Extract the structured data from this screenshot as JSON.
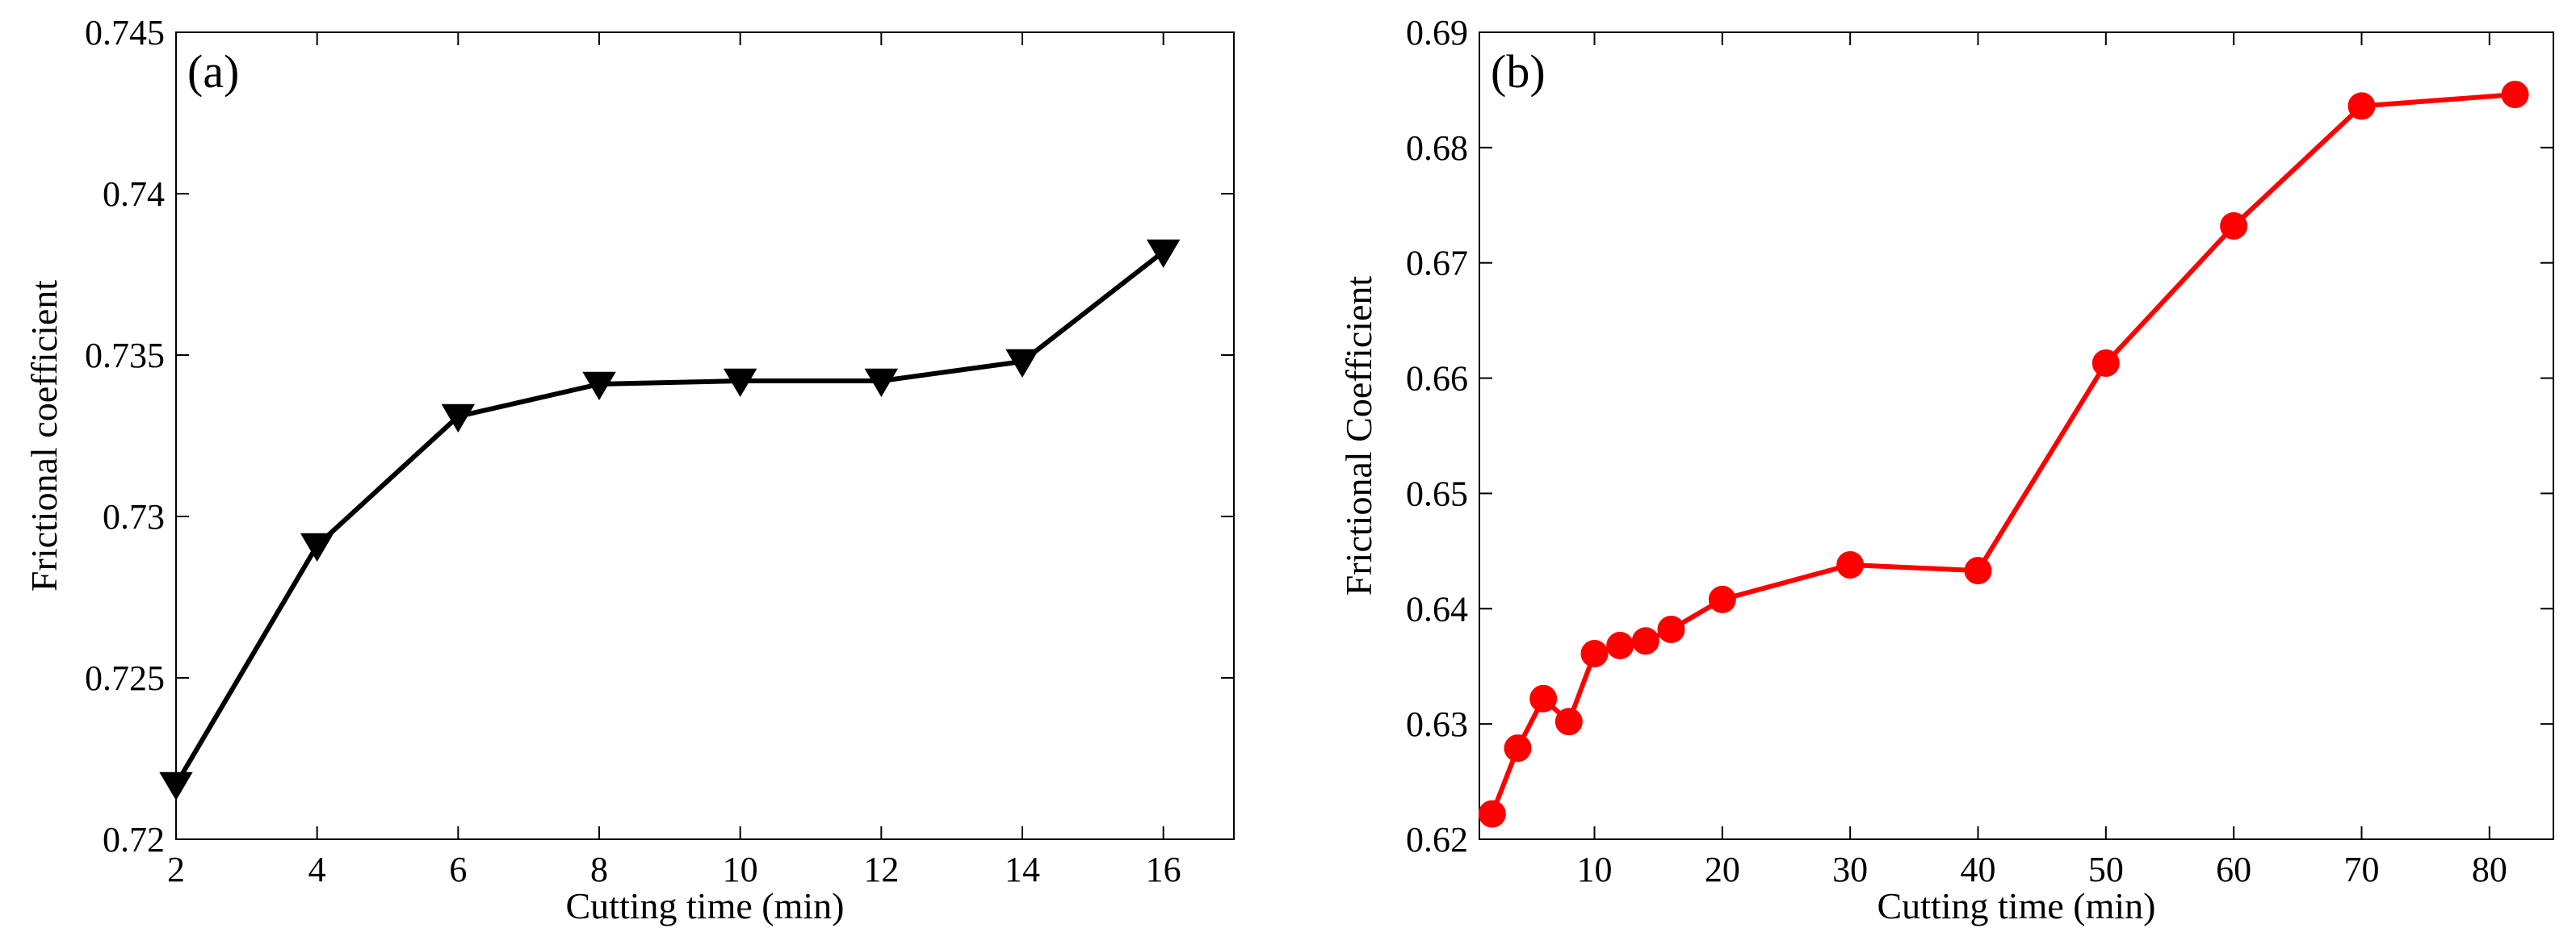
{
  "chart_data": [
    {
      "type": "line",
      "panel_label": "(a)",
      "xlabel": "Cutting time (min)",
      "ylabel": "Frictional coefficient",
      "xlim": [
        2,
        17
      ],
      "ylim": [
        0.72,
        0.745
      ],
      "xticks": [
        2,
        4,
        6,
        8,
        10,
        12,
        14,
        16
      ],
      "xtick_labels": [
        "2",
        "4",
        "6",
        "8",
        "10",
        "12",
        "14",
        "16"
      ],
      "yticks": [
        0.72,
        0.725,
        0.73,
        0.735,
        0.74,
        0.745
      ],
      "ytick_labels": [
        "0.72",
        "0.725",
        "0.73",
        "0.735",
        "0.74",
        "0.745"
      ],
      "marker": "triangle-down",
      "color": "#000000",
      "series": [
        {
          "name": "Frictional coefficient",
          "x": [
            2,
            4,
            6,
            8,
            10,
            12,
            14,
            16
          ],
          "y": [
            0.7217,
            0.7291,
            0.7331,
            0.7341,
            0.7342,
            0.7342,
            0.7348,
            0.7382
          ]
        }
      ]
    },
    {
      "type": "line",
      "panel_label": "(b)",
      "xlabel": "Cutting time (min)",
      "ylabel": "Frictional Coefficient",
      "xlim": [
        1,
        85
      ],
      "ylim": [
        0.62,
        0.69
      ],
      "xticks": [
        10,
        20,
        30,
        40,
        50,
        60,
        70,
        80
      ],
      "xtick_labels": [
        "10",
        "20",
        "30",
        "40",
        "50",
        "60",
        "70",
        "80"
      ],
      "yticks": [
        0.62,
        0.63,
        0.64,
        0.65,
        0.66,
        0.67,
        0.68,
        0.69
      ],
      "ytick_labels": [
        "0.62",
        "0.63",
        "0.64",
        "0.65",
        "0.66",
        "0.67",
        "0.68",
        "0.69"
      ],
      "marker": "circle",
      "color": "#ff0000",
      "series": [
        {
          "name": "Frictional Coefficient",
          "x": [
            2,
            4,
            6,
            8,
            10,
            12,
            14,
            16,
            20,
            30,
            40,
            50,
            60,
            70,
            82
          ],
          "y": [
            0.6222,
            0.6279,
            0.6322,
            0.6302,
            0.6361,
            0.6368,
            0.6372,
            0.6382,
            0.6408,
            0.6438,
            0.6433,
            0.6613,
            0.6732,
            0.6836,
            0.6846
          ]
        }
      ]
    }
  ]
}
